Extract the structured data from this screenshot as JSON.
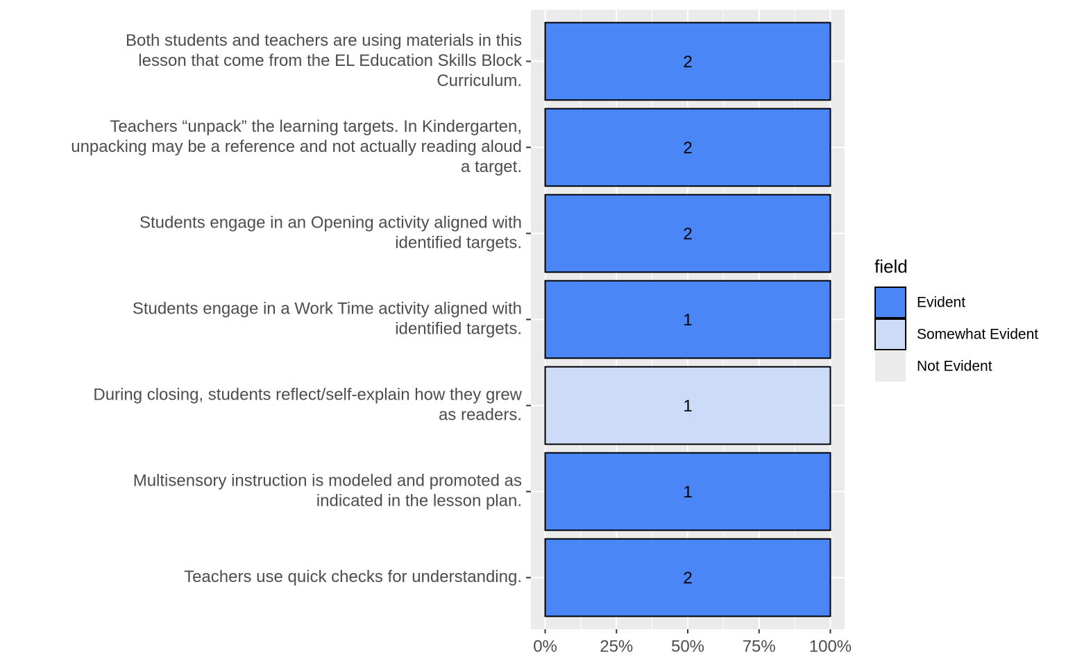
{
  "chart_data": {
    "type": "stacked-bar-horizontal",
    "categories": [
      [
        "Both students and teachers are using materials in this",
        "lesson that come from the EL Education Skills Block",
        "Curriculum."
      ],
      [
        "Teachers “unpack” the learning targets. In Kindergarten,",
        "unpacking may be a reference and not actually reading aloud",
        "a target."
      ],
      [
        "Students engage in an Opening activity aligned with",
        "identified targets."
      ],
      [
        "Students engage in a Work Time activity aligned with",
        "identified targets."
      ],
      [
        "During closing, students reflect/self-explain how they grew",
        "as readers."
      ],
      [
        "Multisensory instruction is modeled and promoted as",
        "indicated in the lesson plan."
      ],
      [
        "Teachers use quick checks for understanding."
      ]
    ],
    "series": [
      {
        "name": "Evident",
        "color": "#4a86f5",
        "values": [
          100,
          100,
          100,
          100,
          0,
          100,
          100
        ],
        "counts": [
          2,
          2,
          2,
          1,
          null,
          1,
          2
        ]
      },
      {
        "name": "Somewhat Evident",
        "color": "#ccdbf8",
        "values": [
          0,
          0,
          0,
          0,
          100,
          0,
          0
        ],
        "counts": [
          null,
          null,
          null,
          null,
          1,
          null,
          null
        ]
      },
      {
        "name": "Not Evident",
        "color": "#ebebeb",
        "values": [
          0,
          0,
          0,
          0,
          0,
          0,
          0
        ],
        "counts": [
          null,
          null,
          null,
          null,
          null,
          null,
          null
        ]
      }
    ],
    "xlim": [
      -5,
      105
    ],
    "xticks": [
      {
        "value": 0,
        "label": "0%"
      },
      {
        "value": 25,
        "label": "25%"
      },
      {
        "value": 50,
        "label": "50%"
      },
      {
        "value": 75,
        "label": "75%"
      },
      {
        "value": 100,
        "label": "100%"
      }
    ],
    "xminor": [
      12.5,
      37.5,
      62.5,
      87.5
    ],
    "legend_title": "field",
    "grid": true
  }
}
